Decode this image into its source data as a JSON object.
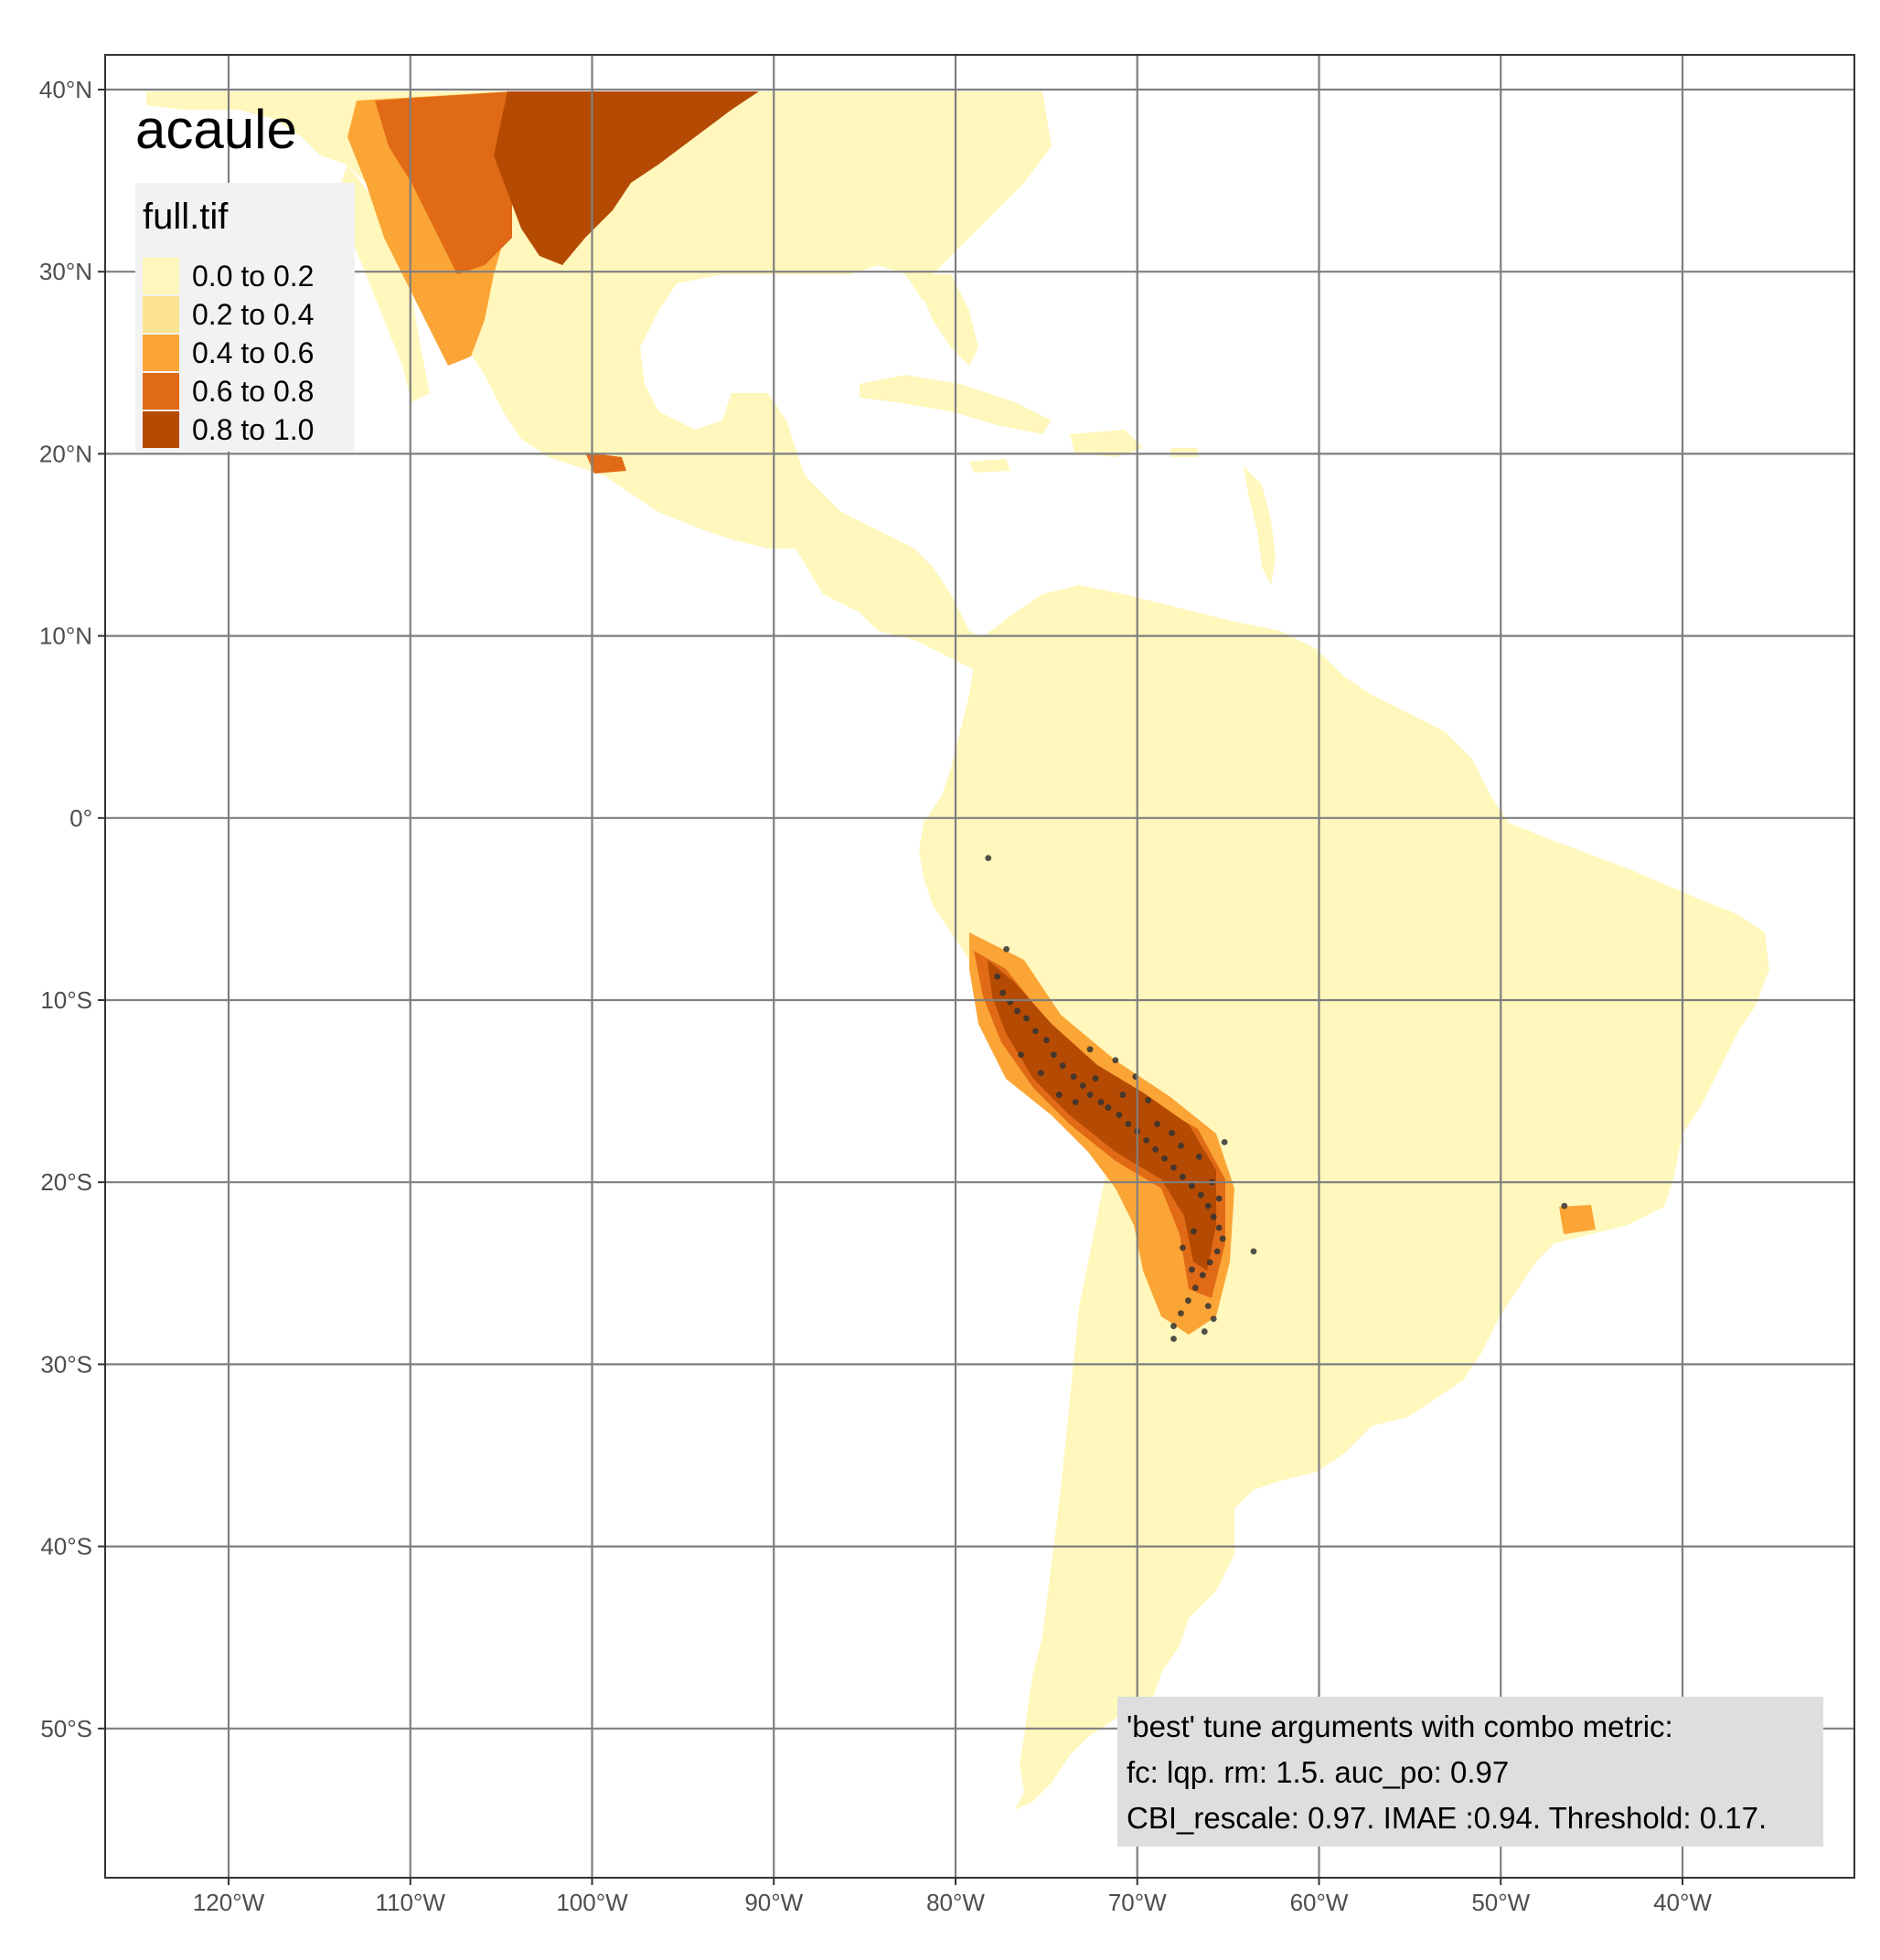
{
  "map": {
    "title": "acaule",
    "extent": {
      "lon": [
        -127,
        -30
      ],
      "lat": [
        -58,
        42
      ]
    },
    "lon_ticks": [
      {
        "value": -120,
        "label": "120°W"
      },
      {
        "value": -110,
        "label": "110°W"
      },
      {
        "value": -100,
        "label": "100°W"
      },
      {
        "value": -90,
        "label": "90°W"
      },
      {
        "value": -80,
        "label": "80°W"
      },
      {
        "value": -70,
        "label": "70°W"
      },
      {
        "value": -60,
        "label": "60°W"
      },
      {
        "value": -50,
        "label": "50°W"
      },
      {
        "value": -40,
        "label": "40°W"
      }
    ],
    "lat_ticks": [
      {
        "value": 40,
        "label": "40°N"
      },
      {
        "value": 30,
        "label": "30°N"
      },
      {
        "value": 20,
        "label": "20°N"
      },
      {
        "value": 10,
        "label": "10°N"
      },
      {
        "value": 0,
        "label": "0°"
      },
      {
        "value": -10,
        "label": "10°S"
      },
      {
        "value": -20,
        "label": "20°S"
      },
      {
        "value": -30,
        "label": "30°S"
      },
      {
        "value": -40,
        "label": "40°S"
      },
      {
        "value": -50,
        "label": "50°S"
      }
    ],
    "grid": true,
    "land_color": "#fff7bc"
  },
  "legend": {
    "title": "full.tif",
    "placement": "top-left",
    "classes": [
      {
        "label": "0.0 to 0.2",
        "color": "#fff7bc"
      },
      {
        "label": "0.2 to 0.4",
        "color": "#fee391"
      },
      {
        "label": "0.4 to 0.6",
        "color": "#fba537"
      },
      {
        "label": "0.6 to 0.8",
        "color": "#e06a16"
      },
      {
        "label": "0.8 to 1.0",
        "color": "#b54a02"
      }
    ]
  },
  "note": {
    "lines": [
      "'best' tune arguments with combo metric:",
      "fc: lqp. rm: 1.5. auc_po: 0.97",
      "CBI_rescale: 0.97. IMAE :0.94. Threshold: 0.17."
    ]
  },
  "occurrences": [
    [
      -78.2,
      -2.2
    ],
    [
      -77.2,
      -7.2
    ],
    [
      -77.7,
      -8.7
    ],
    [
      -77.4,
      -9.6
    ],
    [
      -77.0,
      -10.1
    ],
    [
      -76.6,
      -10.6
    ],
    [
      -76.1,
      -11.0
    ],
    [
      -75.6,
      -11.7
    ],
    [
      -75.0,
      -12.2
    ],
    [
      -74.6,
      -13.0
    ],
    [
      -74.1,
      -13.6
    ],
    [
      -73.5,
      -14.2
    ],
    [
      -73.0,
      -14.7
    ],
    [
      -72.6,
      -15.2
    ],
    [
      -72.0,
      -15.6
    ],
    [
      -71.6,
      -15.9
    ],
    [
      -71.0,
      -16.3
    ],
    [
      -70.5,
      -16.8
    ],
    [
      -70.0,
      -17.2
    ],
    [
      -69.5,
      -17.7
    ],
    [
      -69.0,
      -18.2
    ],
    [
      -68.5,
      -18.7
    ],
    [
      -68.0,
      -19.2
    ],
    [
      -67.5,
      -19.7
    ],
    [
      -67.0,
      -20.2
    ],
    [
      -66.5,
      -20.7
    ],
    [
      -66.1,
      -21.3
    ],
    [
      -65.8,
      -21.9
    ],
    [
      -65.5,
      -22.5
    ],
    [
      -65.3,
      -23.1
    ],
    [
      -65.6,
      -23.8
    ],
    [
      -66.0,
      -24.4
    ],
    [
      -66.4,
      -25.1
    ],
    [
      -66.8,
      -25.8
    ],
    [
      -67.2,
      -26.5
    ],
    [
      -67.6,
      -27.2
    ],
    [
      -68.0,
      -27.9
    ],
    [
      -68.0,
      -28.6
    ],
    [
      -66.3,
      -28.2
    ],
    [
      -63.6,
      -23.8
    ],
    [
      -46.5,
      -21.3
    ],
    [
      -72.6,
      -12.7
    ],
    [
      -71.2,
      -13.3
    ],
    [
      -70.1,
      -14.2
    ],
    [
      -69.4,
      -15.5
    ],
    [
      -67.6,
      -18.0
    ],
    [
      -66.6,
      -18.6
    ],
    [
      -65.2,
      -17.8
    ],
    [
      -65.9,
      -20.0
    ],
    [
      -65.5,
      -20.9
    ],
    [
      -66.9,
      -22.7
    ],
    [
      -67.5,
      -23.6
    ],
    [
      -67.0,
      -24.8
    ],
    [
      -66.1,
      -26.8
    ],
    [
      -65.8,
      -27.5
    ],
    [
      -76.4,
      -13.0
    ],
    [
      -75.3,
      -14.0
    ],
    [
      -74.3,
      -15.2
    ],
    [
      -73.4,
      -15.6
    ],
    [
      -72.3,
      -14.3
    ],
    [
      -70.8,
      -15.2
    ],
    [
      -68.9,
      -16.8
    ],
    [
      -68.1,
      -17.3
    ]
  ]
}
